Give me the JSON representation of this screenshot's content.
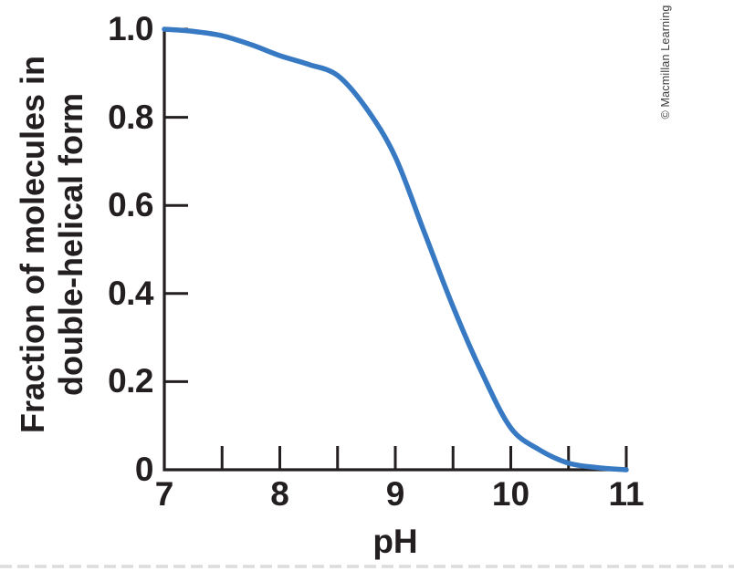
{
  "figure": {
    "copyright": "© Macmillan Learning"
  },
  "colors": {
    "curve": "#3779c2",
    "axis": "#231f20",
    "text": "#231f20",
    "copyright_text": "#3d3d3d",
    "bottom_dash": "#dcdcdc"
  },
  "chart_data": {
    "type": "line",
    "title": "",
    "xlabel": "pH",
    "ylabel": "Fraction of molecules in double-helical form",
    "ylabel_lines": [
      "Fraction of molecules in",
      "double-helical form"
    ],
    "xlim": [
      7,
      11
    ],
    "ylim": [
      0,
      1
    ],
    "grid": false,
    "legend": "none",
    "x_tick_labels": [
      "7",
      "8",
      "9",
      "10",
      "11"
    ],
    "x_tick_values": [
      7,
      8,
      9,
      10,
      11
    ],
    "x_minor_tick_values": [
      7.5,
      8,
      8.5,
      9,
      9.5,
      10,
      10.5,
      11
    ],
    "y_tick_labels": [
      "1.0",
      "0.8",
      "0.6",
      "0.4",
      "0.2",
      "0"
    ],
    "y_tick_values": [
      1.0,
      0.8,
      0.6,
      0.4,
      0.2,
      0
    ],
    "series": [
      {
        "name": "fraction-double-helical",
        "color": "#3779c2",
        "x": [
          7.0,
          7.25,
          7.5,
          7.75,
          8.0,
          8.25,
          8.5,
          8.75,
          9.0,
          9.25,
          9.5,
          9.75,
          10.0,
          10.25,
          10.5,
          10.75,
          11.0
        ],
        "y": [
          1.0,
          0.995,
          0.985,
          0.965,
          0.94,
          0.92,
          0.895,
          0.82,
          0.71,
          0.54,
          0.37,
          0.22,
          0.095,
          0.045,
          0.015,
          0.005,
          0.0
        ]
      }
    ],
    "annotations": {
      "midpoint_pH": 9.3
    }
  }
}
